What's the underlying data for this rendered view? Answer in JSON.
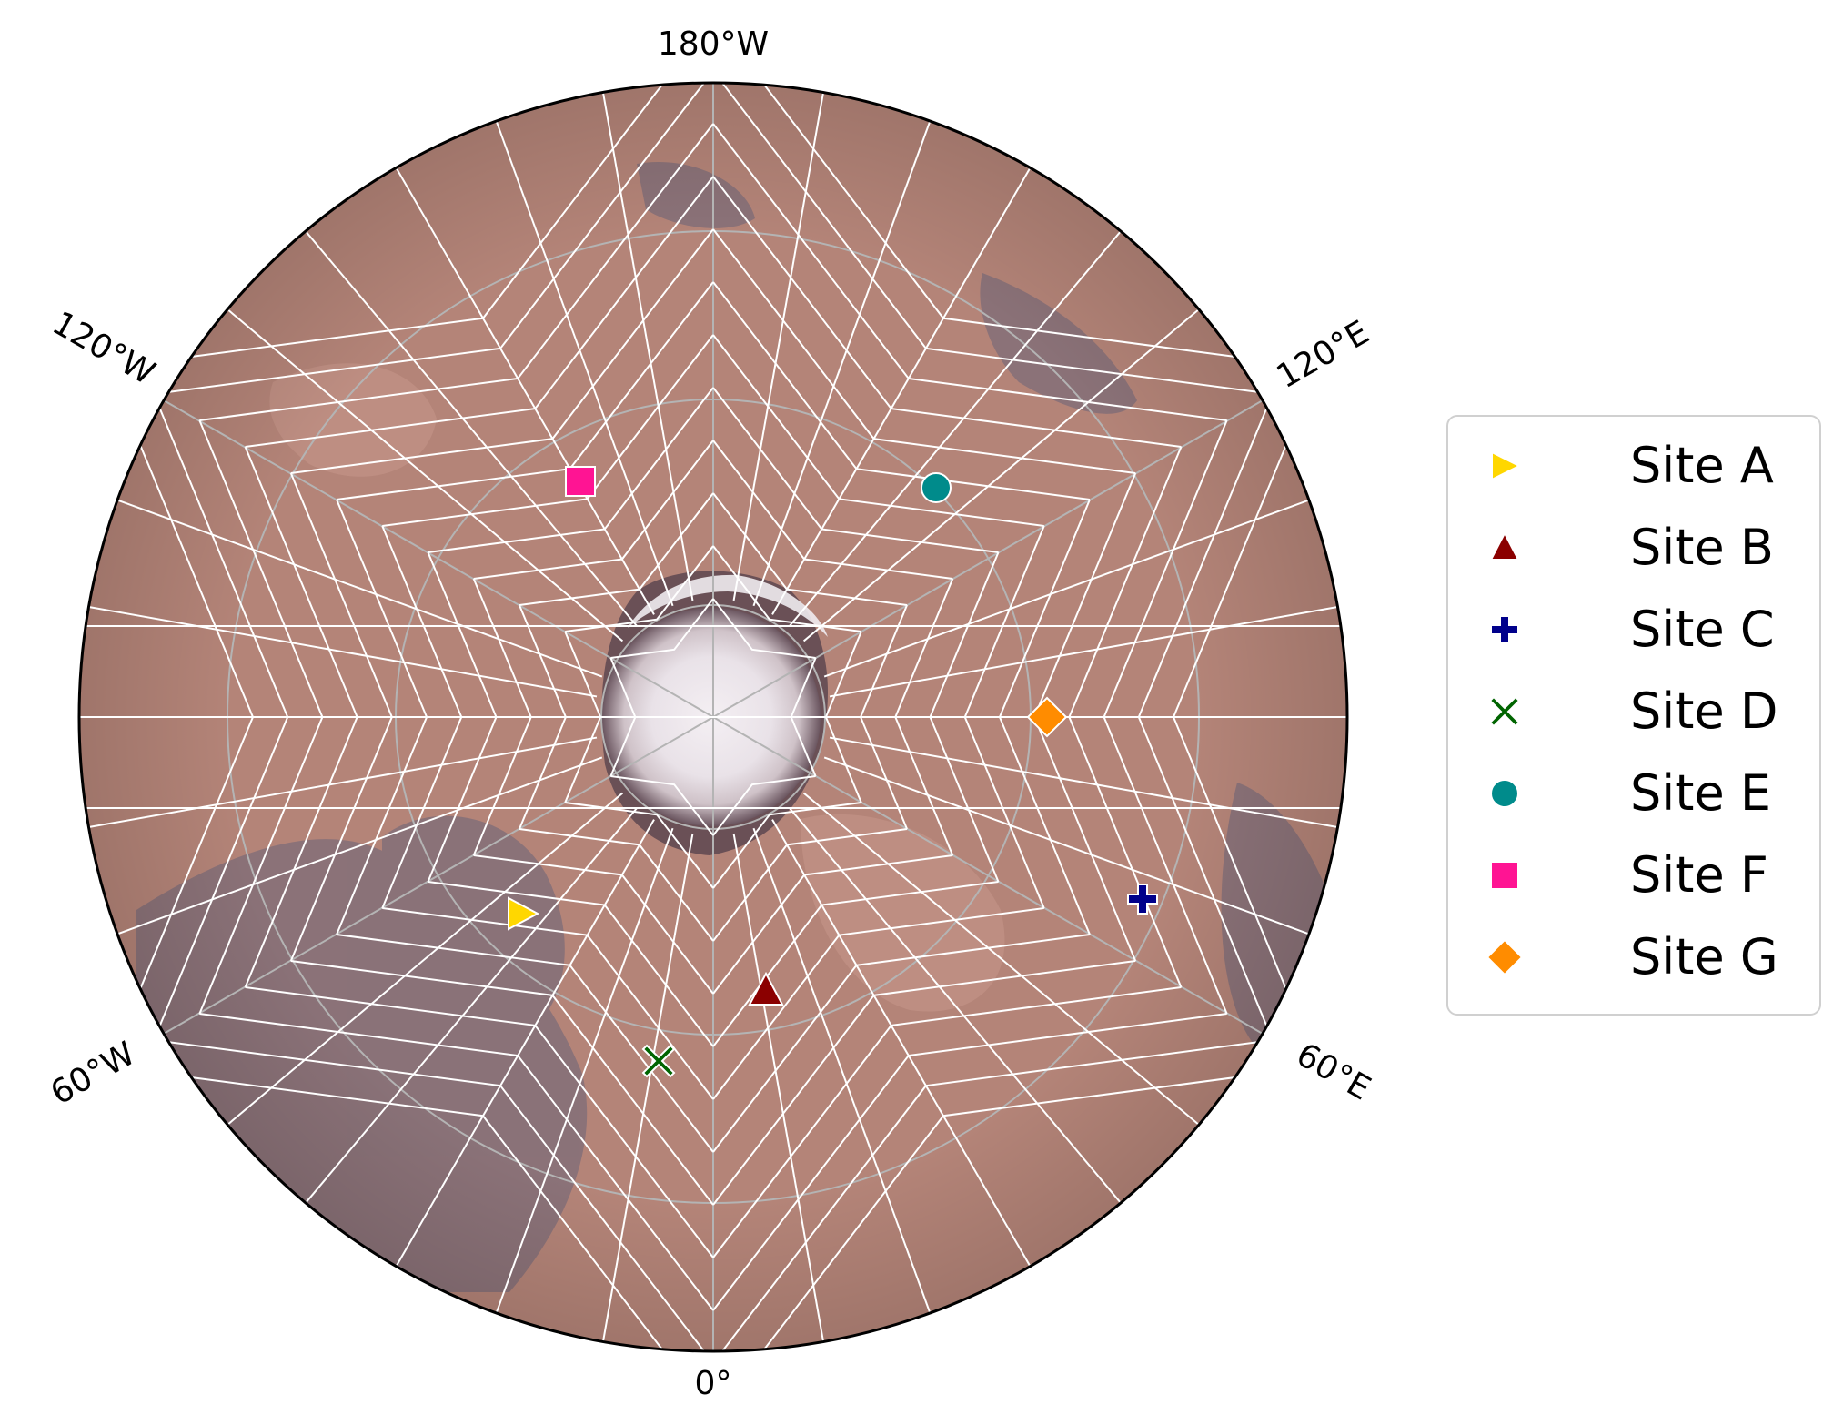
{
  "map": {
    "projection": "polar orthographic (north pole centered)",
    "body": "Mars",
    "longitude_labels": [
      "180°W",
      "120°W",
      "120°E",
      "60°W",
      "60°E",
      "0°"
    ],
    "colors": {
      "surface": "#b48478",
      "dark_region": "#7d6c78",
      "polar_cap": "#efe9ee",
      "graticule_white": "#ffffff",
      "graticule_gray": "#b4b4b4",
      "outline": "#000000"
    }
  },
  "sites": [
    {
      "name": "Site A",
      "marker": "triangle-right",
      "color": "#FFD700"
    },
    {
      "name": "Site B",
      "marker": "triangle-up",
      "color": "#8B0000"
    },
    {
      "name": "Site C",
      "marker": "plus",
      "color": "#00008B"
    },
    {
      "name": "Site D",
      "marker": "x",
      "color": "#006400"
    },
    {
      "name": "Site E",
      "marker": "circle",
      "color": "#008B8B"
    },
    {
      "name": "Site F",
      "marker": "square",
      "color": "#FF1493"
    },
    {
      "name": "Site G",
      "marker": "diamond",
      "color": "#FF8C00"
    }
  ]
}
